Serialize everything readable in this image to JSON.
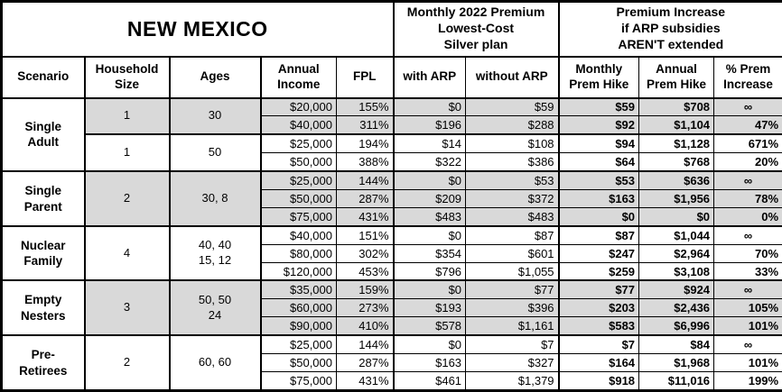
{
  "title": "NEW MEXICO",
  "sections": {
    "premium_header": "Monthly 2022 Premium\nLowest-Cost\nSilver plan",
    "increase_header": "Premium Increase\nif ARP subsidies\nAREN'T extended"
  },
  "columns": {
    "scenario": "Scenario",
    "household": "Household\nSize",
    "ages": "Ages",
    "income": "Annual\nIncome",
    "fpl": "FPL",
    "with_arp": "with ARP",
    "without_arp": "without ARP",
    "monthly_hike": "Monthly\nPrem Hike",
    "annual_hike": "Annual\nPrem Hike",
    "pct_increase": "% Prem\nIncrease"
  },
  "colors": {
    "shade": "#d9d9d9",
    "border": "#000000",
    "background": "#ffffff"
  },
  "infinity_symbol": "∞",
  "groups": [
    {
      "scenario": "Single\nAdult",
      "subgroups": [
        {
          "household": "1",
          "ages": "30",
          "shaded": true,
          "rows": [
            [
              "$20,000",
              "155%",
              "$0",
              "$59",
              "$59",
              "$708",
              "∞"
            ],
            [
              "$40,000",
              "311%",
              "$196",
              "$288",
              "$92",
              "$1,104",
              "47%"
            ]
          ]
        },
        {
          "household": "1",
          "ages": "50",
          "shaded": false,
          "rows": [
            [
              "$25,000",
              "194%",
              "$14",
              "$108",
              "$94",
              "$1,128",
              "671%"
            ],
            [
              "$50,000",
              "388%",
              "$322",
              "$386",
              "$64",
              "$768",
              "20%"
            ]
          ]
        }
      ]
    },
    {
      "scenario": "Single\nParent",
      "subgroups": [
        {
          "household": "2",
          "ages": "30, 8",
          "shaded": true,
          "rows": [
            [
              "$25,000",
              "144%",
              "$0",
              "$53",
              "$53",
              "$636",
              "∞"
            ],
            [
              "$50,000",
              "287%",
              "$209",
              "$372",
              "$163",
              "$1,956",
              "78%"
            ],
            [
              "$75,000",
              "431%",
              "$483",
              "$483",
              "$0",
              "$0",
              "0%"
            ]
          ]
        }
      ]
    },
    {
      "scenario": "Nuclear\nFamily",
      "subgroups": [
        {
          "household": "4",
          "ages": "40, 40\n15, 12",
          "shaded": false,
          "rows": [
            [
              "$40,000",
              "151%",
              "$0",
              "$87",
              "$87",
              "$1,044",
              "∞"
            ],
            [
              "$80,000",
              "302%",
              "$354",
              "$601",
              "$247",
              "$2,964",
              "70%"
            ],
            [
              "$120,000",
              "453%",
              "$796",
              "$1,055",
              "$259",
              "$3,108",
              "33%"
            ]
          ]
        }
      ]
    },
    {
      "scenario": "Empty\nNesters",
      "subgroups": [
        {
          "household": "3",
          "ages": "50, 50\n24",
          "shaded": true,
          "rows": [
            [
              "$35,000",
              "159%",
              "$0",
              "$77",
              "$77",
              "$924",
              "∞"
            ],
            [
              "$60,000",
              "273%",
              "$193",
              "$396",
              "$203",
              "$2,436",
              "105%"
            ],
            [
              "$90,000",
              "410%",
              "$578",
              "$1,161",
              "$583",
              "$6,996",
              "101%"
            ]
          ]
        }
      ]
    },
    {
      "scenario": "Pre-\nRetirees",
      "subgroups": [
        {
          "household": "2",
          "ages": "60, 60",
          "shaded": false,
          "rows": [
            [
              "$25,000",
              "144%",
              "$0",
              "$7",
              "$7",
              "$84",
              "∞"
            ],
            [
              "$50,000",
              "287%",
              "$163",
              "$327",
              "$164",
              "$1,968",
              "101%"
            ],
            [
              "$75,000",
              "431%",
              "$461",
              "$1,379",
              "$918",
              "$11,016",
              "199%"
            ]
          ]
        }
      ]
    }
  ],
  "chart_data": {
    "type": "table",
    "title": "NEW MEXICO",
    "section_headers": [
      "Monthly 2022 Premium Lowest-Cost Silver plan",
      "Premium Increase if ARP subsidies AREN'T extended"
    ],
    "columns": [
      "Scenario",
      "Household Size",
      "Ages",
      "Annual Income",
      "FPL",
      "with ARP",
      "without ARP",
      "Monthly Prem Hike",
      "Annual Prem Hike",
      "% Prem Increase"
    ],
    "rows": [
      [
        "Single Adult",
        "1",
        "30",
        "$20,000",
        "155%",
        "$0",
        "$59",
        "$59",
        "$708",
        "∞"
      ],
      [
        "Single Adult",
        "1",
        "30",
        "$40,000",
        "311%",
        "$196",
        "$288",
        "$92",
        "$1,104",
        "47%"
      ],
      [
        "Single Adult",
        "1",
        "50",
        "$25,000",
        "194%",
        "$14",
        "$108",
        "$94",
        "$1,128",
        "671%"
      ],
      [
        "Single Adult",
        "1",
        "50",
        "$50,000",
        "388%",
        "$322",
        "$386",
        "$64",
        "$768",
        "20%"
      ],
      [
        "Single Parent",
        "2",
        "30, 8",
        "$25,000",
        "144%",
        "$0",
        "$53",
        "$53",
        "$636",
        "∞"
      ],
      [
        "Single Parent",
        "2",
        "30, 8",
        "$50,000",
        "287%",
        "$209",
        "$372",
        "$163",
        "$1,956",
        "78%"
      ],
      [
        "Single Parent",
        "2",
        "30, 8",
        "$75,000",
        "431%",
        "$483",
        "$483",
        "$0",
        "$0",
        "0%"
      ],
      [
        "Nuclear Family",
        "4",
        "40, 40, 15, 12",
        "$40,000",
        "151%",
        "$0",
        "$87",
        "$87",
        "$1,044",
        "∞"
      ],
      [
        "Nuclear Family",
        "4",
        "40, 40, 15, 12",
        "$80,000",
        "302%",
        "$354",
        "$601",
        "$247",
        "$2,964",
        "70%"
      ],
      [
        "Nuclear Family",
        "4",
        "40, 40, 15, 12",
        "$120,000",
        "453%",
        "$796",
        "$1,055",
        "$259",
        "$3,108",
        "33%"
      ],
      [
        "Empty Nesters",
        "3",
        "50, 50, 24",
        "$35,000",
        "159%",
        "$0",
        "$77",
        "$77",
        "$924",
        "∞"
      ],
      [
        "Empty Nesters",
        "3",
        "50, 50, 24",
        "$60,000",
        "273%",
        "$193",
        "$396",
        "$203",
        "$2,436",
        "105%"
      ],
      [
        "Empty Nesters",
        "3",
        "50, 50, 24",
        "$90,000",
        "410%",
        "$578",
        "$1,161",
        "$583",
        "$6,996",
        "101%"
      ],
      [
        "Pre-Retirees",
        "2",
        "60, 60",
        "$25,000",
        "144%",
        "$0",
        "$7",
        "$7",
        "$84",
        "∞"
      ],
      [
        "Pre-Retirees",
        "2",
        "60, 60",
        "$50,000",
        "287%",
        "$163",
        "$327",
        "$164",
        "$1,968",
        "101%"
      ],
      [
        "Pre-Retirees",
        "2",
        "60, 60",
        "$75,000",
        "431%",
        "$461",
        "$1,379",
        "$918",
        "$11,016",
        "199%"
      ]
    ]
  }
}
